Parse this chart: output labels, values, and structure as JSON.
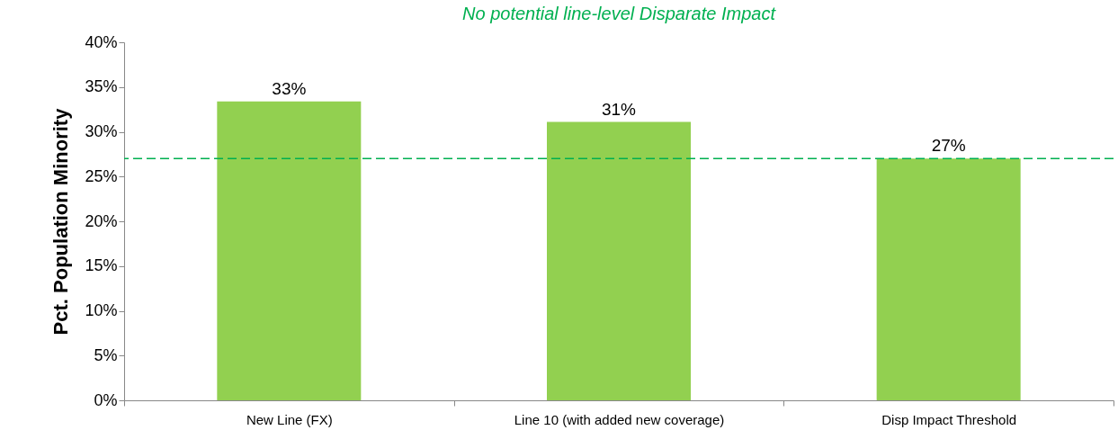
{
  "chart_data": {
    "type": "bar",
    "title": "No potential line-level Disparate Impact",
    "ylabel": "Pct. Population Minority",
    "categories": [
      "New Line (FX)",
      "Line 10 (with added new coverage)",
      "Disp Impact Threshold"
    ],
    "values": [
      33.4,
      31.1,
      27.0
    ],
    "value_labels": [
      "33%",
      "31%",
      "27%"
    ],
    "color": "#92d050",
    "ylim": [
      0,
      40
    ],
    "yticks": [
      {
        "value": 0,
        "label": "0%"
      },
      {
        "value": 5,
        "label": "5%"
      },
      {
        "value": 10,
        "label": "10%"
      },
      {
        "value": 15,
        "label": "15%"
      },
      {
        "value": 20,
        "label": "20%"
      },
      {
        "value": 25,
        "label": "25%"
      },
      {
        "value": 30,
        "label": "30%"
      },
      {
        "value": 35,
        "label": "35%"
      },
      {
        "value": 40,
        "label": "40%"
      }
    ],
    "ref_lines": [
      {
        "axis": "y",
        "value": 27,
        "color": "#00b050",
        "line_style": "dashed"
      }
    ],
    "grid": false
  }
}
